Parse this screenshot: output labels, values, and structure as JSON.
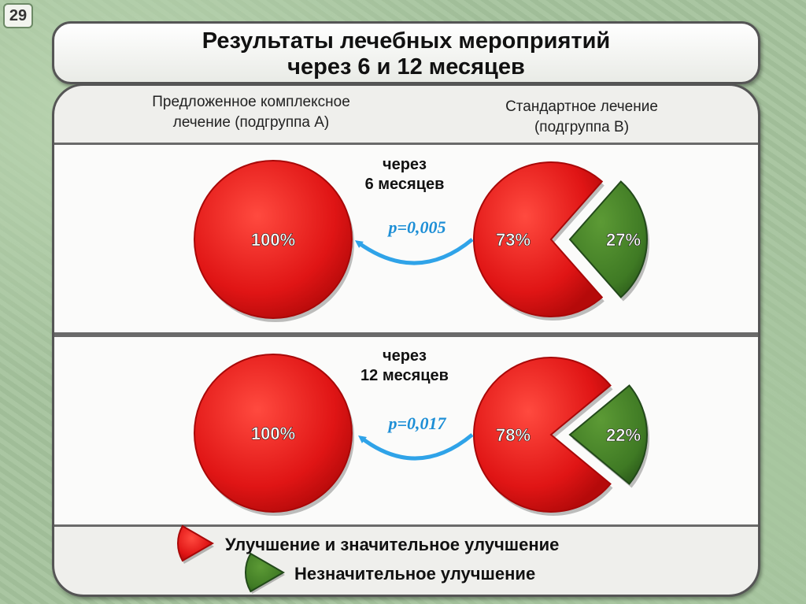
{
  "slide_number": "29",
  "title": {
    "line1": "Результаты лечебных мероприятий",
    "line2": "через 6 и 12 месяцев"
  },
  "columns": {
    "group_a": {
      "line1": "Предложенное комплексное",
      "line2": "лечение (подгруппа А)"
    },
    "group_b": {
      "line1": "Стандартное лечение",
      "line2": "(подгруппа В)"
    }
  },
  "legend": {
    "improvement": "Улучшение и значительное улучшение",
    "minor": "Незначительное улучшение"
  },
  "colors": {
    "red": "#e01515",
    "red_dark": "#a80808",
    "green": "#3f7a24",
    "green_dark": "#22491a",
    "arrow": "#2fa3e8",
    "pvalue": "#1e8fd6"
  },
  "chart_data": [
    {
      "type": "pie",
      "period_line1": "через",
      "period_line2": "6 месяцев",
      "p_value": "p=0,005",
      "group_a": [
        {
          "label": "100%",
          "value": 100,
          "category": "improvement"
        }
      ],
      "group_b": [
        {
          "label": "73%",
          "value": 73,
          "category": "improvement"
        },
        {
          "label": "27%",
          "value": 27,
          "category": "minor"
        }
      ]
    },
    {
      "type": "pie",
      "period_line1": "через",
      "period_line2": "12 месяцев",
      "p_value": "p=0,017",
      "group_a": [
        {
          "label": "100%",
          "value": 100,
          "category": "improvement"
        }
      ],
      "group_b": [
        {
          "label": "78%",
          "value": 78,
          "category": "improvement"
        },
        {
          "label": "22%",
          "value": 22,
          "category": "minor"
        }
      ]
    }
  ]
}
